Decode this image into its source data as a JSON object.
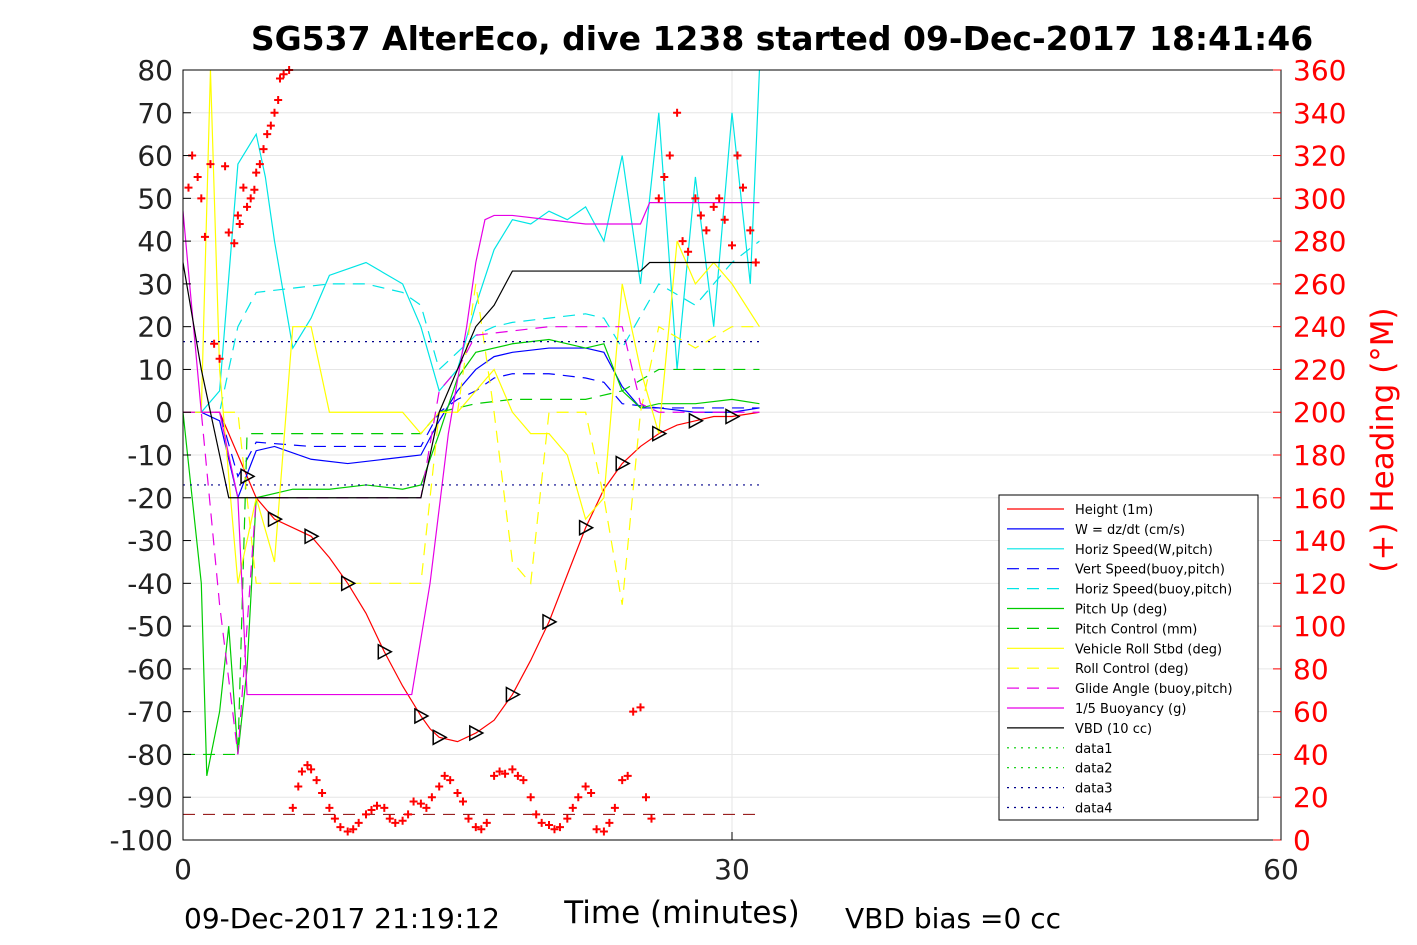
{
  "chart_data": {
    "type": "line",
    "title": "SG537 AlterEco, dive 1238 started 09-Dec-2017 18:41:46",
    "xlabel": "Time (minutes)",
    "ylabel_right": "(+) Heading (°M)",
    "xlim": [
      0,
      60
    ],
    "ylim": [
      -100,
      80
    ],
    "ylim_right": [
      0,
      360
    ],
    "xticks": [
      "0",
      "30",
      "60"
    ],
    "yticks": [
      "80",
      "70",
      "60",
      "50",
      "40",
      "30",
      "20",
      "10",
      "0",
      "-10",
      "-20",
      "-30",
      "-40",
      "-50",
      "-60",
      "-70",
      "-80",
      "-90",
      "-100"
    ],
    "yticks_right": [
      "360",
      "340",
      "320",
      "300",
      "280",
      "260",
      "240",
      "220",
      "200",
      "180",
      "160",
      "140",
      "120",
      "100",
      "80",
      "60",
      "40",
      "20",
      "0"
    ],
    "grid": true,
    "legend_position": "lower-right",
    "footer_left": "09-Dec-2017 21:19:12",
    "footer_right": "VBD bias =0 cc",
    "colors": {
      "right_axis": "#ff0000",
      "grid": "#e6e6e6"
    },
    "series": [
      {
        "name": "Height (1m)",
        "color": "#ff0000",
        "style": "solid",
        "x": [
          0,
          1,
          2,
          3,
          3.5,
          4,
          5,
          6,
          7,
          8,
          9,
          10,
          11,
          12,
          13,
          13.5,
          14,
          15,
          16,
          17,
          18,
          19,
          20,
          21,
          22,
          23,
          24,
          25,
          26,
          27,
          28,
          29,
          30,
          31.5
        ],
        "values": [
          0,
          0,
          0,
          -10,
          -15,
          -20,
          -25,
          -27,
          -29,
          -34,
          -40,
          -47,
          -56,
          -64,
          -71,
          -74,
          -76,
          -77,
          -75,
          -72,
          -66,
          -58,
          -49,
          -38,
          -27,
          -18,
          -12,
          -8,
          -5,
          -3,
          -2,
          -1,
          -1,
          0
        ]
      },
      {
        "name": "W = dz/dt (cm/s)",
        "color": "#0000ff",
        "style": "solid",
        "x": [
          0,
          1,
          2,
          3,
          4,
          5,
          7,
          9,
          11,
          13,
          14,
          15,
          16,
          17,
          18,
          20,
          22,
          23,
          24,
          25,
          26,
          28,
          30,
          31.5
        ],
        "values": [
          0,
          0,
          -2,
          -20,
          -9,
          -8,
          -11,
          -12,
          -11,
          -10,
          -2,
          5,
          10,
          13,
          14,
          15,
          15,
          14,
          6,
          1,
          1,
          0,
          0,
          1
        ]
      },
      {
        "name": "Horiz Speed(W,pitch)",
        "color": "#00e5e5",
        "style": "solid",
        "x": [
          0,
          1,
          2,
          3,
          4,
          4.5,
          5,
          6,
          7,
          8,
          10,
          12,
          13,
          14,
          15,
          16,
          17,
          18,
          19,
          20,
          21,
          22,
          23,
          24,
          25,
          26,
          27,
          28,
          29,
          30,
          31,
          31.5
        ],
        "values": [
          0,
          0,
          5,
          58,
          65,
          55,
          40,
          15,
          22,
          32,
          35,
          30,
          20,
          5,
          10,
          25,
          38,
          45,
          44,
          47,
          45,
          48,
          40,
          60,
          30,
          70,
          10,
          55,
          20,
          70,
          30,
          80
        ]
      },
      {
        "name": "Vert Speed(buoy,pitch)",
        "color": "#0000ff",
        "style": "dashed",
        "x": [
          0,
          2,
          3,
          4,
          7,
          10,
          13,
          14,
          15,
          16,
          17,
          18,
          20,
          22,
          23,
          24,
          26,
          28,
          30,
          31.5
        ],
        "values": [
          0,
          0,
          -15,
          -7,
          -8,
          -8,
          -8,
          0,
          3,
          5,
          8,
          9,
          9,
          8,
          7,
          2,
          1,
          1,
          1,
          1
        ]
      },
      {
        "name": "Horiz Speed(buoy,pitch)",
        "color": "#00e5e5",
        "style": "dashed",
        "x": [
          0,
          2,
          3,
          4,
          6,
          8,
          10,
          12,
          13,
          14,
          15,
          16,
          17,
          18,
          20,
          22,
          23,
          24,
          26,
          28,
          30,
          31.5
        ],
        "values": [
          0,
          0,
          20,
          28,
          29,
          30,
          30,
          28,
          25,
          10,
          14,
          18,
          20,
          21,
          22,
          23,
          22,
          15,
          30,
          25,
          35,
          40
        ]
      },
      {
        "name": "Pitch Up (deg)",
        "color": "#00cc00",
        "style": "solid",
        "x": [
          0,
          1,
          1.3,
          2,
          2.5,
          3,
          3.5,
          4,
          6,
          8,
          10,
          12,
          13,
          14,
          15,
          16,
          18,
          20,
          22,
          23,
          24,
          25,
          26,
          28,
          30,
          31.5
        ],
        "values": [
          0,
          -40,
          -85,
          -70,
          -50,
          -80,
          -60,
          -20,
          -18,
          -18,
          -17,
          -18,
          -17,
          -5,
          8,
          14,
          16,
          17,
          15,
          16,
          5,
          1,
          2,
          2,
          3,
          2
        ]
      },
      {
        "name": "Pitch Control (mm)",
        "color": "#00cc00",
        "style": "dashed",
        "x": [
          0,
          3,
          3.5,
          13,
          14,
          16,
          18,
          20,
          22,
          24,
          26,
          28,
          30,
          31.5
        ],
        "values": [
          -80,
          -80,
          -5,
          -5,
          0,
          2,
          3,
          3,
          3,
          5,
          10,
          10,
          10,
          10
        ]
      },
      {
        "name": "Vehicle Roll Stbd (deg)",
        "color": "#ffff00",
        "style": "solid",
        "x": [
          0,
          1,
          1.5,
          2,
          3,
          4,
          5,
          6,
          7,
          8,
          9,
          10,
          12,
          13,
          14,
          15,
          16,
          17,
          18,
          19,
          20,
          21,
          22,
          23,
          24,
          25,
          26,
          27,
          28,
          29,
          30,
          31.5
        ],
        "values": [
          0,
          0,
          80,
          10,
          -40,
          -20,
          -35,
          20,
          20,
          0,
          0,
          0,
          0,
          -5,
          0,
          0,
          5,
          10,
          0,
          -5,
          -5,
          -10,
          -25,
          -20,
          30,
          10,
          -5,
          40,
          30,
          35,
          30,
          20
        ]
      },
      {
        "name": "Roll Control (deg)",
        "color": "#ffff00",
        "style": "dashed",
        "x": [
          0,
          3,
          4,
          6,
          10,
          13,
          14,
          15,
          16,
          17,
          18,
          19,
          20,
          22,
          23,
          24,
          25,
          26,
          28,
          30,
          31.5
        ],
        "values": [
          0,
          0,
          -40,
          -40,
          -40,
          -40,
          0,
          0,
          30,
          0,
          -35,
          -40,
          0,
          0,
          -20,
          -45,
          0,
          20,
          15,
          20,
          20
        ]
      },
      {
        "name": "Glide Angle (buoy,pitch)",
        "color": "#e600e6",
        "style": "dashed",
        "x": [
          0,
          1,
          2,
          3,
          4,
          13,
          14,
          15,
          16,
          18,
          20,
          22,
          24,
          25,
          26,
          28,
          30,
          31.5
        ],
        "values": [
          0,
          0,
          -45,
          -80,
          -20,
          -20,
          5,
          10,
          18,
          19,
          20,
          20,
          20,
          2,
          0,
          0,
          0,
          0
        ]
      },
      {
        "name": "1/5 Buoyancy (g)",
        "color": "#e600e6",
        "style": "solid",
        "x": [
          0,
          1,
          2,
          3,
          3.5,
          4,
          5,
          8,
          11,
          12.5,
          13.5,
          14.5,
          15.5,
          16,
          16.5,
          17,
          18,
          20,
          22,
          24,
          25,
          25.5,
          26,
          28,
          30,
          31.5
        ],
        "values": [
          47,
          0,
          0,
          -20,
          -66,
          -66,
          -66,
          -66,
          -66,
          -66,
          -40,
          -5,
          20,
          35,
          45,
          46,
          46,
          45,
          44,
          44,
          44,
          49,
          49,
          49,
          49,
          49
        ]
      },
      {
        "name": "VBD (10 cc)",
        "color": "#000000",
        "style": "solid",
        "x": [
          0,
          1,
          2,
          2.5,
          3,
          4,
          6,
          8,
          10,
          12,
          13,
          14,
          15,
          16,
          17,
          18,
          19,
          20,
          21,
          22,
          24,
          25,
          25.5,
          26,
          28,
          30,
          31.5
        ],
        "values": [
          35,
          10,
          -10,
          -20,
          -20,
          -20,
          -20,
          -20,
          -20,
          -20,
          -20,
          0,
          10,
          20,
          25,
          33,
          33,
          33,
          33,
          33,
          33,
          33,
          35,
          35,
          35,
          35,
          35
        ]
      },
      {
        "name": "data1",
        "color": "#00cc00",
        "style": "dotted",
        "x": [],
        "values": []
      },
      {
        "name": "data2",
        "color": "#00cc00",
        "style": "dotted",
        "x": [],
        "values": []
      },
      {
        "name": "data3",
        "color": "#00008b",
        "style": "dotted",
        "x": [
          0,
          31.5
        ],
        "values": [
          16.5,
          16.5
        ]
      },
      {
        "name": "data4",
        "color": "#00008b",
        "style": "dotted",
        "x": [
          0,
          31.5
        ],
        "values": [
          -17,
          -17
        ]
      }
    ],
    "reference_line_right": {
      "color": "#8b0000",
      "style": "dashed",
      "value": 12
    },
    "heading_points": {
      "color": "#ff0000",
      "marker": "plus",
      "x": [
        0.3,
        0.5,
        0.8,
        1.0,
        1.2,
        1.5,
        1.7,
        2.0,
        2.3,
        2.5,
        2.8,
        3.0,
        3.1,
        3.3,
        3.5,
        3.7,
        3.9,
        4.0,
        4.2,
        4.4,
        4.6,
        4.8,
        5.0,
        5.2,
        5.3,
        5.5,
        5.8,
        6.0,
        6.3,
        6.5,
        6.8,
        7.0,
        7.3,
        7.6,
        8.0,
        8.3,
        8.6,
        9.0,
        9.3,
        9.6,
        10.0,
        10.3,
        10.6,
        11.0,
        11.3,
        11.6,
        12.0,
        12.3,
        12.6,
        13.0,
        13.3,
        13.6,
        14.0,
        14.3,
        14.6,
        15.0,
        15.3,
        15.6,
        16.0,
        16.3,
        16.6,
        17.0,
        17.3,
        17.6,
        18.0,
        18.3,
        18.6,
        19.0,
        19.3,
        19.6,
        20.0,
        20.3,
        20.6,
        21.0,
        21.3,
        21.6,
        22.0,
        22.3,
        22.6,
        23.0,
        23.3,
        23.6,
        24.0,
        24.3,
        24.6,
        25.0,
        25.3,
        25.6,
        26.0,
        26.3,
        26.6,
        27.0,
        27.3,
        27.6,
        28.0,
        28.3,
        28.6,
        29.0,
        29.3,
        29.6,
        30.0,
        30.3,
        30.6,
        31.0,
        31.3
      ],
      "values": [
        305,
        320,
        310,
        300,
        282,
        316,
        232,
        225,
        315,
        284,
        279,
        292,
        288,
        305,
        296,
        300,
        304,
        312,
        316,
        323,
        330,
        334,
        340,
        346,
        356,
        358,
        360,
        15,
        25,
        32,
        35,
        33,
        28,
        22,
        15,
        10,
        6,
        4,
        5,
        8,
        12,
        14,
        16,
        15,
        10,
        8,
        9,
        12,
        18,
        17,
        15,
        20,
        25,
        30,
        28,
        22,
        18,
        10,
        6,
        5,
        8,
        30,
        32,
        31,
        33,
        30,
        28,
        20,
        12,
        8,
        7,
        5,
        6,
        10,
        15,
        20,
        25,
        22,
        5,
        4,
        8,
        15,
        28,
        30,
        60,
        62,
        20,
        10,
        300,
        310,
        320,
        340,
        280,
        275,
        300,
        292,
        285,
        296,
        300,
        290,
        278,
        320,
        305,
        285,
        270
      ]
    }
  }
}
